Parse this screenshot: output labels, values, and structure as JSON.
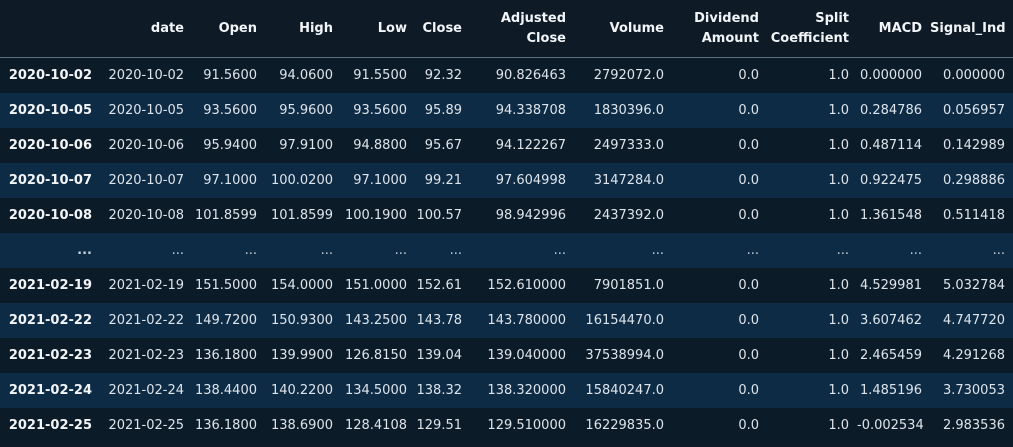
{
  "columns": [
    "",
    "date",
    "Open",
    "High",
    "Low",
    "Close",
    "Adjusted\nClose",
    "Volume",
    "Dividend\nAmount",
    "Split\nCoefficient",
    "MACD",
    "Signal_Ind"
  ],
  "rows": [
    [
      "2020-10-02",
      "2020-10-02",
      "91.5600",
      "94.0600",
      "91.5500",
      "92.32",
      "90.826463",
      "2792072.0",
      "0.0",
      "1.0",
      "0.000000",
      "0.000000"
    ],
    [
      "2020-10-05",
      "2020-10-05",
      "93.5600",
      "95.9600",
      "93.5600",
      "95.89",
      "94.338708",
      "1830396.0",
      "0.0",
      "1.0",
      "0.284786",
      "0.056957"
    ],
    [
      "2020-10-06",
      "2020-10-06",
      "95.9400",
      "97.9100",
      "94.8800",
      "95.67",
      "94.122267",
      "2497333.0",
      "0.0",
      "1.0",
      "0.487114",
      "0.142989"
    ],
    [
      "2020-10-07",
      "2020-10-07",
      "97.1000",
      "100.0200",
      "97.1000",
      "99.21",
      "97.604998",
      "3147284.0",
      "0.0",
      "1.0",
      "0.922475",
      "0.298886"
    ],
    [
      "2020-10-08",
      "2020-10-08",
      "101.8599",
      "101.8599",
      "100.1900",
      "100.57",
      "98.942996",
      "2437392.0",
      "0.0",
      "1.0",
      "1.361548",
      "0.511418"
    ],
    [
      "...",
      "...",
      "...",
      "...",
      "...",
      "...",
      "...",
      "...",
      "...",
      "...",
      "...",
      "..."
    ],
    [
      "2021-02-19",
      "2021-02-19",
      "151.5000",
      "154.0000",
      "151.0000",
      "152.61",
      "152.610000",
      "7901851.0",
      "0.0",
      "1.0",
      "4.529981",
      "5.032784"
    ],
    [
      "2021-02-22",
      "2021-02-22",
      "149.7200",
      "150.9300",
      "143.2500",
      "143.78",
      "143.780000",
      "16154470.0",
      "0.0",
      "1.0",
      "3.607462",
      "4.747720"
    ],
    [
      "2021-02-23",
      "2021-02-23",
      "136.1800",
      "139.9900",
      "126.8150",
      "139.04",
      "139.040000",
      "37538994.0",
      "0.0",
      "1.0",
      "2.465459",
      "4.291268"
    ],
    [
      "2021-02-24",
      "2021-02-24",
      "138.4400",
      "140.2200",
      "134.5000",
      "138.32",
      "138.320000",
      "15840247.0",
      "0.0",
      "1.0",
      "1.485196",
      "3.730053"
    ],
    [
      "2021-02-25",
      "2021-02-25",
      "136.1800",
      "138.6900",
      "128.4108",
      "129.51",
      "129.510000",
      "16229835.0",
      "0.0",
      "1.0",
      "-0.002534",
      "2.983536"
    ]
  ]
}
